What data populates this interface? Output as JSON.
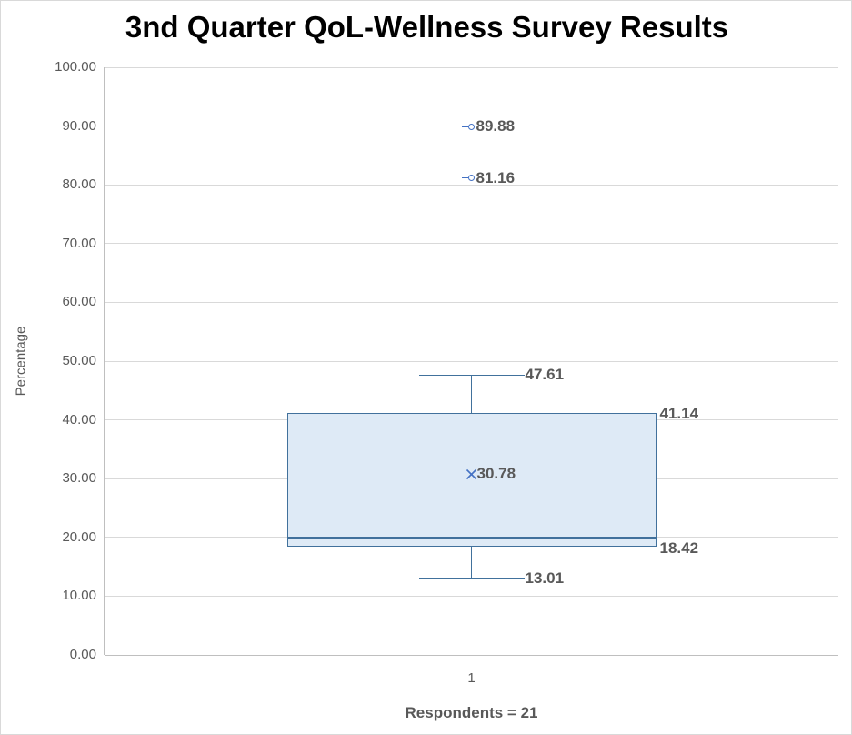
{
  "chart_data": {
    "type": "boxplot",
    "title": "3nd Quarter QoL-Wellness Survey Results",
    "ylabel": "Percentage",
    "xlabel": "Respondents = 21",
    "categories": [
      "1"
    ],
    "ylim": [
      0,
      100
    ],
    "grid": "horizontal",
    "y_ticks": [
      0,
      10,
      20,
      30,
      40,
      50,
      60,
      70,
      80,
      90,
      100
    ],
    "y_tick_labels": [
      "0.00",
      "10.00",
      "20.00",
      "30.00",
      "40.00",
      "50.00",
      "60.00",
      "70.00",
      "80.00",
      "90.00",
      "100.00"
    ],
    "series": [
      {
        "name": "1",
        "whisker_low": 13.01,
        "q1": 18.42,
        "median": 20.0,
        "mean": 30.78,
        "q3": 41.14,
        "whisker_high": 47.61,
        "outliers": [
          89.88,
          81.16
        ],
        "labels": {
          "whisker_low": "13.01",
          "q1": "18.42",
          "mean": "30.78",
          "q3": "41.14",
          "whisker_high": "47.61",
          "outliers": [
            "89.88",
            "81.16"
          ]
        }
      }
    ],
    "colors": {
      "box_fill": "#deeaf6",
      "box_border": "#41719c",
      "marker": "#4472c4",
      "data_label": "#595959",
      "gridline": "#d9d9d9",
      "axis_line": "#bfbfbf",
      "title": "#000000"
    }
  }
}
